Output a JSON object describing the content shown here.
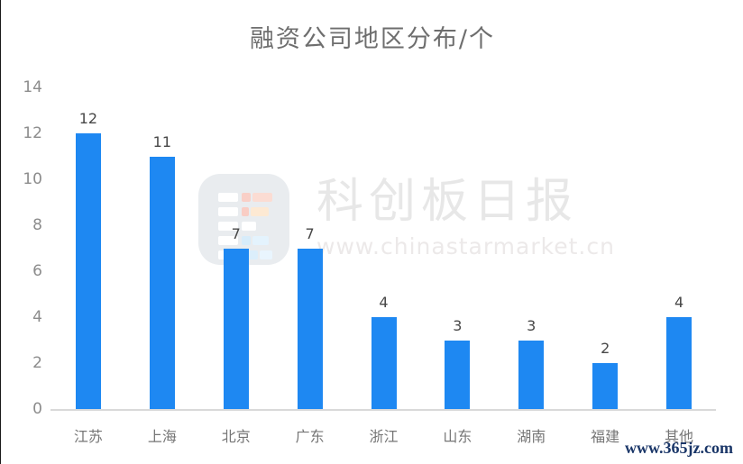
{
  "chart_data": {
    "type": "bar",
    "title": "融资公司地区分布/个",
    "categories": [
      "江苏",
      "上海",
      "北京",
      "广东",
      "浙江",
      "山东",
      "湖南",
      "福建",
      "其他"
    ],
    "values": [
      12,
      11,
      7,
      7,
      4,
      3,
      3,
      2,
      4
    ],
    "xlabel": "",
    "ylabel": "",
    "ylim": [
      0,
      14
    ],
    "yticks": [
      0,
      2,
      4,
      6,
      8,
      10,
      12,
      14
    ],
    "grid": false,
    "legend": "none",
    "value_labels_shown": true,
    "bar_color": "#1E88F2",
    "axis_line_color": "#d9d9d9",
    "tick_label_color": "#8c8c8c",
    "value_label_color": "#474747",
    "category_label_color": "#767676",
    "title_color": "#6e6e6e"
  },
  "watermark": {
    "brand": "科创板日报",
    "url": "www.chinastarmarket.cn",
    "logo_icon": "mosaic-blocks-logo"
  },
  "footer": {
    "site": "www.365jz.com",
    "color": "#1a3668"
  }
}
